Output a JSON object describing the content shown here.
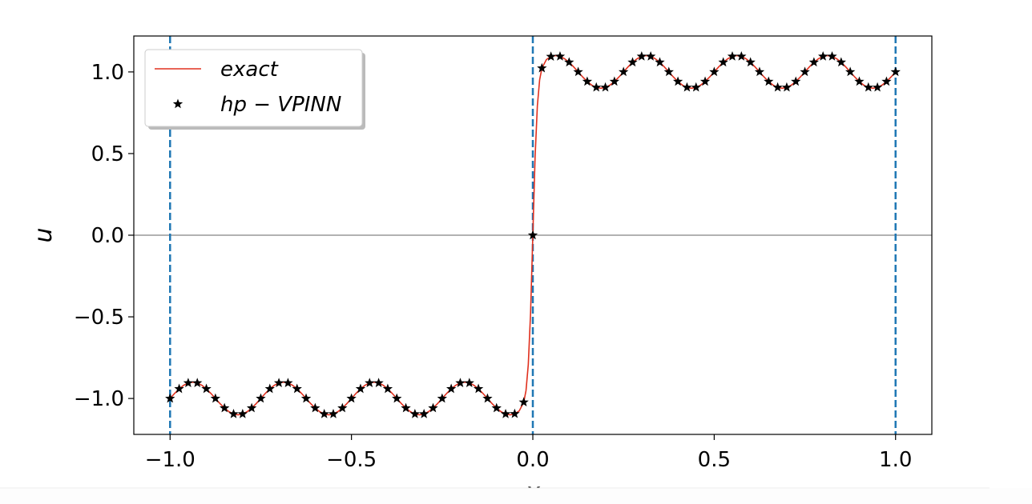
{
  "chart_data": {
    "type": "line",
    "xlabel": "x",
    "ylabel": "u",
    "xlim": [
      -1.1,
      1.1
    ],
    "ylim": [
      -1.22,
      1.22
    ],
    "xticks": [
      {
        "value": -1,
        "label": "−1.0"
      },
      {
        "value": -0.5,
        "label": "−0.5"
      },
      {
        "value": 0,
        "label": "0.0"
      },
      {
        "value": 0.5,
        "label": "0.5"
      },
      {
        "value": 1,
        "label": "1.0"
      }
    ],
    "yticks": [
      {
        "value": -1,
        "label": "−1.0"
      },
      {
        "value": -0.5,
        "label": "−0.5"
      },
      {
        "value": 0,
        "label": "0.0"
      },
      {
        "value": 0.5,
        "label": "0.5"
      },
      {
        "value": 1,
        "label": "1.0"
      }
    ],
    "vlines": [
      -1,
      0,
      1
    ],
    "vline_color": "#1f77b4",
    "hline": 0,
    "hline_color": "#999999",
    "legend": "upper left",
    "series": [
      {
        "name": "exact",
        "color": "#e0301e",
        "marker": "none",
        "x": [
          -1,
          -0.9875,
          -0.975,
          -0.9625,
          -0.95,
          -0.9375,
          -0.925,
          -0.9125,
          -0.9,
          -0.8875,
          -0.875,
          -0.8625,
          -0.85,
          -0.8375,
          -0.825,
          -0.8125,
          -0.8,
          -0.7875,
          -0.775,
          -0.7625,
          -0.75,
          -0.7375,
          -0.725,
          -0.7125,
          -0.7,
          -0.6875,
          -0.675,
          -0.6625,
          -0.65,
          -0.6375,
          -0.625,
          -0.6125,
          -0.6,
          -0.5875,
          -0.575,
          -0.5625,
          -0.55,
          -0.5375,
          -0.525,
          -0.5125,
          -0.5,
          -0.4875,
          -0.475,
          -0.4625,
          -0.45,
          -0.4375,
          -0.425,
          -0.4125,
          -0.4,
          -0.3875,
          -0.375,
          -0.3625,
          -0.35,
          -0.3375,
          -0.325,
          -0.3125,
          -0.3,
          -0.2875,
          -0.275,
          -0.2625,
          -0.25,
          -0.2375,
          -0.225,
          -0.2125,
          -0.2,
          -0.1875,
          -0.175,
          -0.1625,
          -0.15,
          -0.1375,
          -0.125,
          -0.1125,
          -0.1,
          -0.0875,
          -0.075,
          -0.0625,
          -0.05,
          -0.0375,
          -0.025,
          -0.01875,
          -0.0125,
          -0.00625,
          0,
          0.00625,
          0.0125,
          0.01875,
          0.025,
          0.0375,
          0.05,
          0.0625,
          0.075,
          0.0875,
          0.1,
          0.1125,
          0.125,
          0.1375,
          0.15,
          0.1625,
          0.175,
          0.1875,
          0.2,
          0.2125,
          0.225,
          0.2375,
          0.25,
          0.2625,
          0.275,
          0.2875,
          0.3,
          0.3125,
          0.325,
          0.3375,
          0.35,
          0.3625,
          0.375,
          0.3875,
          0.4,
          0.4125,
          0.425,
          0.4375,
          0.45,
          0.4625,
          0.475,
          0.4875,
          0.5,
          0.5125,
          0.525,
          0.5375,
          0.55,
          0.5625,
          0.575,
          0.5875,
          0.6,
          0.6125,
          0.625,
          0.6375,
          0.65,
          0.6625,
          0.675,
          0.6875,
          0.7,
          0.7125,
          0.725,
          0.7375,
          0.75,
          0.7625,
          0.775,
          0.7875,
          0.8,
          0.8125,
          0.825,
          0.8375,
          0.85,
          0.8625,
          0.875,
          0.8875,
          0.9,
          0.9125,
          0.925,
          0.9375,
          0.95,
          0.9625,
          0.975,
          0.9875,
          1
        ],
        "values": [
          -1,
          -0.969,
          -0.941,
          -0.919,
          -0.905,
          -0.9,
          -0.905,
          -0.919,
          -0.941,
          -0.969,
          -1,
          -1.031,
          -1.059,
          -1.081,
          -1.095,
          -1.1,
          -1.095,
          -1.081,
          -1.059,
          -1.031,
          -1,
          -0.969,
          -0.941,
          -0.919,
          -0.905,
          -0.9,
          -0.905,
          -0.919,
          -0.941,
          -0.969,
          -1,
          -1.031,
          -1.059,
          -1.081,
          -1.095,
          -1.1,
          -1.095,
          -1.081,
          -1.059,
          -1.031,
          -1,
          -0.969,
          -0.941,
          -0.919,
          -0.905,
          -0.9,
          -0.905,
          -0.919,
          -0.941,
          -0.969,
          -1,
          -1.031,
          -1.059,
          -1.081,
          -1.095,
          -1.1,
          -1.095,
          -1.081,
          -1.059,
          -1.031,
          -1,
          -0.969,
          -0.941,
          -0.919,
          -0.905,
          -0.9,
          -0.905,
          -0.919,
          -0.941,
          -0.969,
          -1,
          -1.031,
          -1.059,
          -1.081,
          -1.095,
          -1.1,
          -1.094,
          -1.076,
          -1.023,
          -0.951,
          -0.792,
          -0.478,
          0,
          0.478,
          0.792,
          0.951,
          1.023,
          1.076,
          1.094,
          1.1,
          1.095,
          1.081,
          1.059,
          1.031,
          1,
          0.969,
          0.941,
          0.919,
          0.905,
          0.9,
          0.905,
          0.919,
          0.941,
          0.969,
          1,
          1.031,
          1.059,
          1.081,
          1.095,
          1.1,
          1.095,
          1.081,
          1.059,
          1.031,
          1,
          0.969,
          0.941,
          0.919,
          0.905,
          0.9,
          0.905,
          0.919,
          0.941,
          0.969,
          1,
          1.031,
          1.059,
          1.081,
          1.095,
          1.1,
          1.095,
          1.081,
          1.059,
          1.031,
          1,
          0.969,
          0.941,
          0.919,
          0.905,
          0.9,
          0.905,
          0.919,
          0.941,
          0.969,
          1,
          1.031,
          1.059,
          1.081,
          1.095,
          1.1,
          1.095,
          1.081,
          1.059,
          1.031,
          1,
          0.969,
          0.941,
          0.919,
          0.905,
          0.9,
          0.905,
          0.919,
          0.941,
          0.969,
          1
        ]
      },
      {
        "name": "hp − VPINN",
        "color": "#000000",
        "marker": "star",
        "x": [
          -1,
          -0.975,
          -0.95,
          -0.925,
          -0.9,
          -0.875,
          -0.85,
          -0.825,
          -0.8,
          -0.775,
          -0.75,
          -0.725,
          -0.7,
          -0.675,
          -0.65,
          -0.625,
          -0.6,
          -0.575,
          -0.55,
          -0.525,
          -0.5,
          -0.475,
          -0.45,
          -0.425,
          -0.4,
          -0.375,
          -0.35,
          -0.325,
          -0.3,
          -0.275,
          -0.25,
          -0.225,
          -0.2,
          -0.175,
          -0.15,
          -0.125,
          -0.1,
          -0.075,
          -0.05,
          -0.025,
          0,
          0.025,
          0.05,
          0.075,
          0.1,
          0.125,
          0.15,
          0.175,
          0.2,
          0.225,
          0.25,
          0.275,
          0.3,
          0.325,
          0.35,
          0.375,
          0.4,
          0.425,
          0.45,
          0.475,
          0.5,
          0.525,
          0.55,
          0.575,
          0.6,
          0.625,
          0.65,
          0.675,
          0.7,
          0.725,
          0.75,
          0.775,
          0.8,
          0.825,
          0.85,
          0.875,
          0.9,
          0.925,
          0.95,
          0.975,
          1
        ],
        "values": [
          -1,
          -0.941,
          -0.905,
          -0.905,
          -0.941,
          -1,
          -1.059,
          -1.095,
          -1.095,
          -1.059,
          -1,
          -0.941,
          -0.905,
          -0.905,
          -0.941,
          -1,
          -1.059,
          -1.095,
          -1.095,
          -1.059,
          -1,
          -0.941,
          -0.905,
          -0.905,
          -0.941,
          -1,
          -1.059,
          -1.095,
          -1.095,
          -1.059,
          -1,
          -0.941,
          -0.905,
          -0.905,
          -0.941,
          -1,
          -1.059,
          -1.095,
          -1.094,
          -1.023,
          0,
          1.023,
          1.094,
          1.095,
          1.059,
          1,
          0.941,
          0.905,
          0.905,
          0.941,
          1,
          1.059,
          1.095,
          1.095,
          1.059,
          1,
          0.941,
          0.905,
          0.905,
          0.941,
          1,
          1.059,
          1.095,
          1.095,
          1.059,
          1,
          0.941,
          0.905,
          0.905,
          0.941,
          1,
          1.059,
          1.095,
          1.095,
          1.059,
          1,
          0.941,
          0.905,
          0.905,
          0.941,
          1
        ]
      }
    ]
  }
}
